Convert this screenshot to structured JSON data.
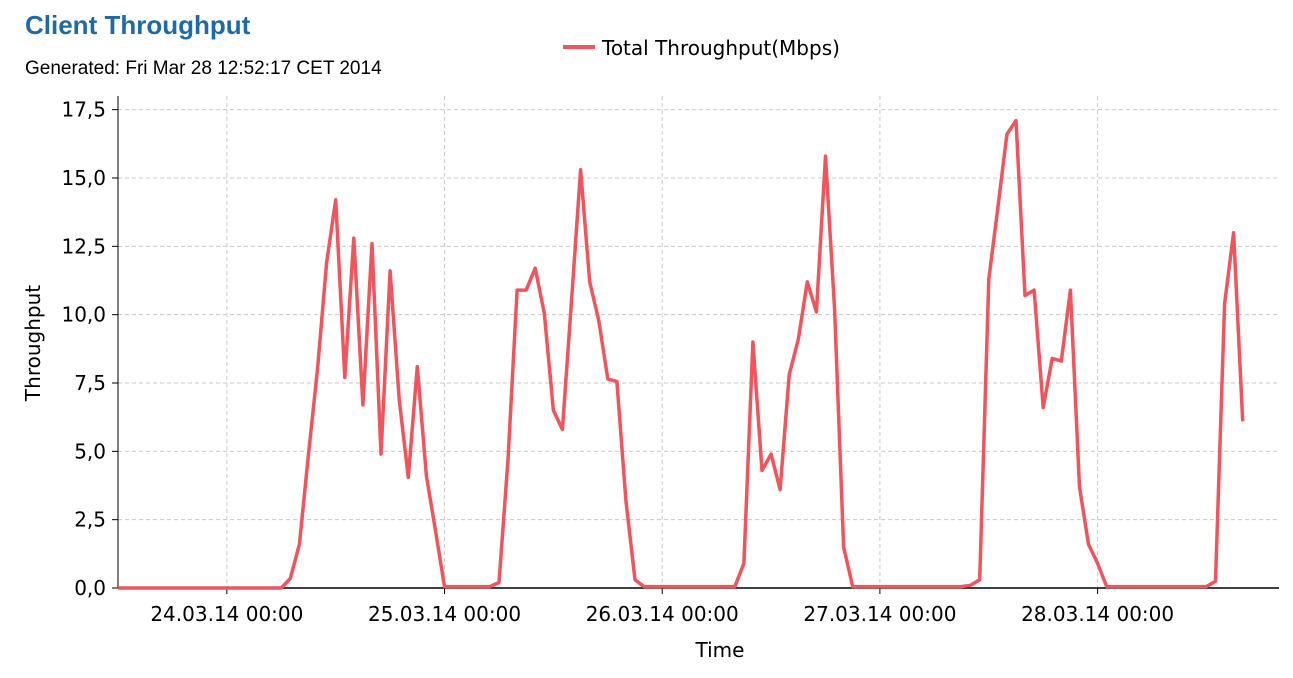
{
  "header": {
    "title": "Client Throughput",
    "subtitle": "Generated: Fri Mar 28 12:52:17 CET 2014"
  },
  "chart_data": {
    "type": "line",
    "xlabel": "Time",
    "ylabel": "Throughput",
    "x_unit": "hours since 23.03.14 12:00 (not printed; internal axis unit)",
    "xlim": [
      0,
      128
    ],
    "ylim": [
      0,
      18
    ],
    "yticks": [
      0,
      2.5,
      5,
      7.5,
      10,
      12.5,
      15,
      17.5
    ],
    "ytick_labels": [
      "0,0",
      "2,5",
      "5,0",
      "7,5",
      "10,0",
      "12,5",
      "15,0",
      "17,5"
    ],
    "xticks": [
      12,
      36,
      60,
      84,
      108
    ],
    "xtick_labels": [
      "24.03.14 00:00",
      "25.03.14 00:00",
      "26.03.14 00:00",
      "27.03.14 00:00",
      "28.03.14 00:00"
    ],
    "grid": true,
    "legend_position": "top-center",
    "series": [
      {
        "name": "Total Throughput(Mbps)",
        "color": "#f0545c",
        "x": [
          0,
          18,
          19,
          20,
          21,
          22,
          23,
          24,
          25,
          26,
          27,
          28,
          29,
          30,
          31,
          32,
          33,
          34,
          35,
          36,
          37,
          38,
          39,
          40,
          41,
          42,
          43,
          44,
          45,
          46,
          47,
          48,
          49,
          50,
          51,
          52,
          53,
          54,
          55,
          56,
          57,
          58,
          59,
          60,
          61,
          62,
          63,
          64,
          65,
          66,
          67,
          68,
          69,
          70,
          71,
          72,
          73,
          74,
          75,
          76,
          77,
          78,
          79,
          80,
          81,
          82,
          83,
          84,
          85,
          86,
          87,
          88,
          89,
          90,
          91,
          92,
          93,
          94,
          95,
          96,
          97,
          98,
          99,
          100,
          101,
          102,
          103,
          104,
          105,
          106,
          107,
          108,
          109,
          110,
          111,
          112,
          113,
          114,
          115,
          116,
          117,
          118,
          119,
          120,
          121,
          122,
          123,
          124
        ],
        "y": [
          0,
          0,
          0.35,
          1.6,
          4.9,
          8.0,
          11.9,
          14.2,
          7.7,
          12.8,
          6.7,
          12.6,
          4.9,
          11.6,
          6.9,
          4.05,
          8.1,
          4.1,
          2.1,
          0.05,
          0.05,
          0.05,
          0.05,
          0.05,
          0.05,
          0.2,
          4.7,
          10.9,
          10.9,
          11.7,
          10.05,
          6.5,
          5.8,
          10.5,
          15.3,
          11.2,
          9.8,
          7.65,
          7.55,
          3.2,
          0.3,
          0.05,
          0.05,
          0.05,
          0.05,
          0.05,
          0.05,
          0.05,
          0.05,
          0.05,
          0.05,
          0.05,
          0.9,
          9.0,
          4.3,
          4.9,
          3.6,
          7.8,
          9.1,
          11.2,
          10.1,
          15.8,
          10.2,
          1.5,
          0.05,
          0.05,
          0.05,
          0.05,
          0.05,
          0.05,
          0.05,
          0.05,
          0.05,
          0.05,
          0.05,
          0.05,
          0.05,
          0.1,
          0.3,
          11.3,
          13.9,
          16.6,
          17.1,
          10.7,
          10.9,
          6.6,
          8.4,
          8.3,
          10.9,
          3.7,
          1.6,
          0.9,
          0.05,
          0.05,
          0.05,
          0.05,
          0.05,
          0.05,
          0.05,
          0.05,
          0.05,
          0.05,
          0.05,
          0.05,
          0.25,
          10.4,
          13.0,
          6.1
        ]
      }
    ]
  }
}
